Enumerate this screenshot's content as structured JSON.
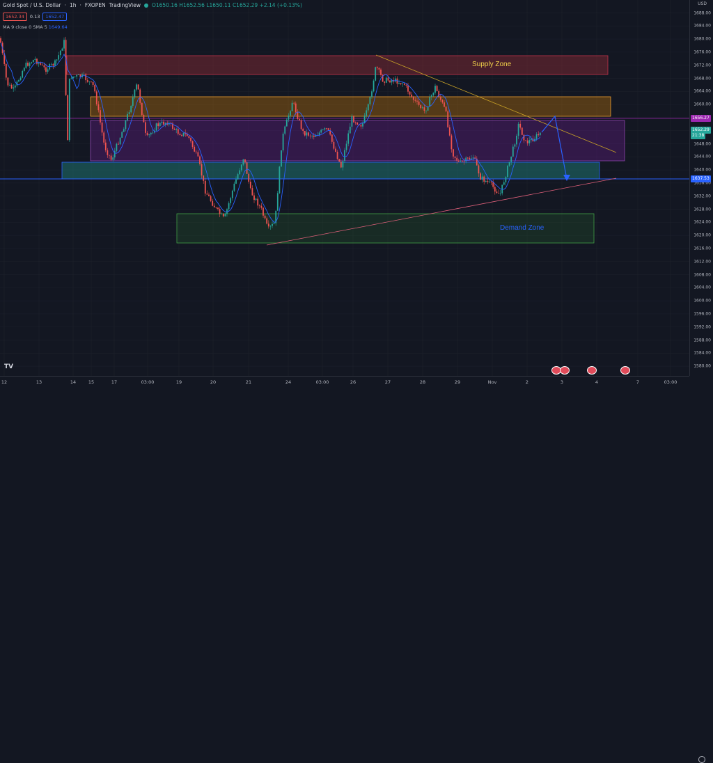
{
  "header": {
    "symbol": "Gold Spot / U.S. Dollar",
    "interval": "1h",
    "broker": "FXOPEN",
    "platform": "TradingView",
    "open": "O1650.16",
    "high": "H1652.56",
    "low": "L1650.11",
    "close": "C1652.29",
    "change": "+2.14 (+0.13%)"
  },
  "quote": {
    "sell": "1652.34",
    "spread": "0.13",
    "buy": "1652.47"
  },
  "indicator": {
    "label": "MA 9 close 0 SMA 5",
    "value": "1649.64"
  },
  "currency": "USD",
  "zones": {
    "supply": "Supply Zone",
    "demand": "Demand Zone"
  },
  "price_ticks": [
    "1688.00",
    "1684.00",
    "1680.00",
    "1676.00",
    "1672.00",
    "1668.00",
    "1664.00",
    "1660.00",
    "1656.00",
    "1652.00",
    "1648.00",
    "1644.00",
    "1640.00",
    "1636.00",
    "1632.00",
    "1628.00",
    "1624.00",
    "1620.00",
    "1616.00",
    "1612.00",
    "1608.00",
    "1604.00",
    "1600.00",
    "1596.00",
    "1592.00",
    "1588.00",
    "1584.00",
    "1580.00"
  ],
  "price_labels": {
    "resistance": "1656.27",
    "current": "1652.29",
    "countdown": "21:38",
    "support": "1637.53"
  },
  "time_labels": [
    "12",
    "13",
    "14",
    "15",
    "17",
    "03:00",
    "19",
    "20",
    "21",
    "24",
    "03:00",
    "26",
    "27",
    "28",
    "29",
    "Nov",
    "2",
    "3",
    "4",
    "7",
    "03:00"
  ],
  "colors": {
    "bull": "#26a69a",
    "bear": "#ef5350",
    "ma": "#2962ff",
    "supply": "#b2303d",
    "demand": "#2e7d32",
    "support": "#2962ff",
    "resistance": "#9c27b0"
  }
}
